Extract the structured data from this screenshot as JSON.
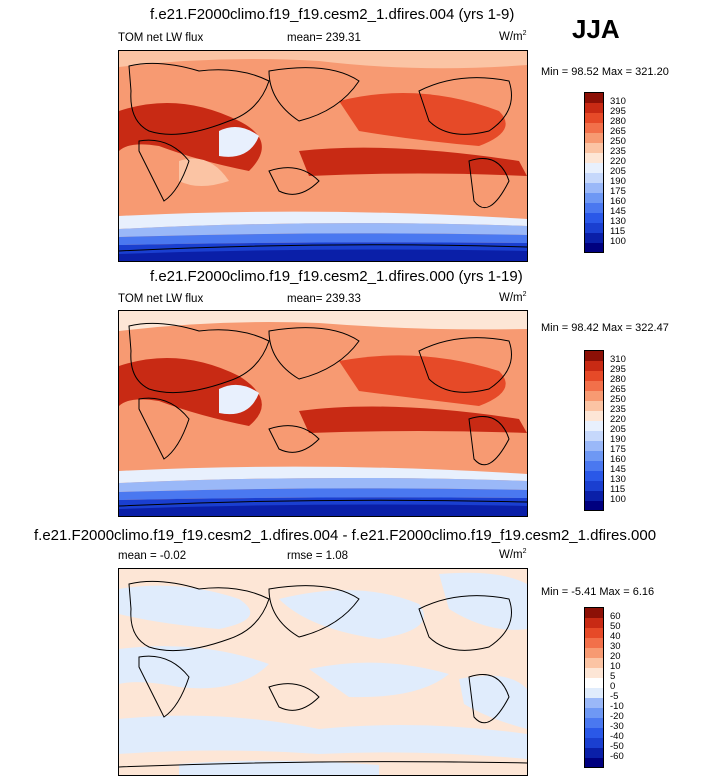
{
  "season": "JJA",
  "panels": [
    {
      "title": "f.e21.F2000climo.f19_f19.cesm2_1.dfires.004 (yrs 1-9)",
      "left_label": "TOM net LW flux",
      "center_label": "mean= 239.31",
      "units": "W/m",
      "units_sup": "2",
      "minmax": "Min =  98.52 Max = 321.20"
    },
    {
      "title": "f.e21.F2000climo.f19_f19.cesm2_1.dfires.000 (yrs 1-19)",
      "left_label": "TOM net LW flux",
      "center_label": "mean= 239.33",
      "units": "W/m",
      "units_sup": "2",
      "minmax": "Min =  98.42 Max = 322.47"
    },
    {
      "title": "f.e21.F2000climo.f19_f19.cesm2_1.dfires.004 - f.e21.F2000climo.f19_f19.cesm2_1.dfires.000",
      "left_label": "mean =  -0.02",
      "center_label": "rmse =  1.08",
      "units": "W/m",
      "units_sup": "2",
      "minmax": "Min = -5.41 Max =  6.16"
    }
  ],
  "chart_data": [
    {
      "type": "heatmap",
      "title": "f.e21.F2000climo.f19_f19.cesm2_1.dfires.004 (yrs 1-9)",
      "variable": "TOM net LW flux",
      "units": "W/m2",
      "mean": 239.31,
      "min": 98.52,
      "max": 321.2,
      "colorbar_levels": [
        100,
        115,
        130,
        145,
        160,
        175,
        190,
        205,
        220,
        235,
        250,
        265,
        280,
        295,
        310
      ]
    },
    {
      "type": "heatmap",
      "title": "f.e21.F2000climo.f19_f19.cesm2_1.dfires.000 (yrs 1-19)",
      "variable": "TOM net LW flux",
      "units": "W/m2",
      "mean": 239.33,
      "min": 98.42,
      "max": 322.47,
      "colorbar_levels": [
        100,
        115,
        130,
        145,
        160,
        175,
        190,
        205,
        220,
        235,
        250,
        265,
        280,
        295,
        310
      ]
    },
    {
      "type": "heatmap",
      "title": "f.e21.F2000climo.f19_f19.cesm2_1.dfires.004 - f.e21.F2000climo.f19_f19.cesm2_1.dfires.000",
      "units": "W/m2",
      "mean": -0.02,
      "rmse": 1.08,
      "min": -5.41,
      "max": 6.16,
      "colorbar_levels": [
        -60,
        -50,
        -40,
        -30,
        -20,
        -10,
        -5,
        0,
        5,
        10,
        20,
        30,
        40,
        50,
        60
      ]
    }
  ],
  "colors": {
    "abs_scale": [
      "#00007f",
      "#0a1fa8",
      "#1a3fd0",
      "#2a58e8",
      "#4a78f0",
      "#6e98f4",
      "#9ab8f8",
      "#c6d8fb",
      "#e8f0fd",
      "#fde6d6",
      "#fbc4a4",
      "#f79a72",
      "#f2704a",
      "#e64a28",
      "#c82a14",
      "#8c1006"
    ],
    "diff_scale": [
      "#00007f",
      "#0a1fa8",
      "#1a3fd0",
      "#2a58e8",
      "#4a78f0",
      "#6e98f4",
      "#9ab8f8",
      "#c6d8fb",
      "#e0ecfc",
      "#fde6d6",
      "#fbc4a4",
      "#f79a72",
      "#f2704a",
      "#e64a28",
      "#c82a14",
      "#8c1006"
    ]
  }
}
